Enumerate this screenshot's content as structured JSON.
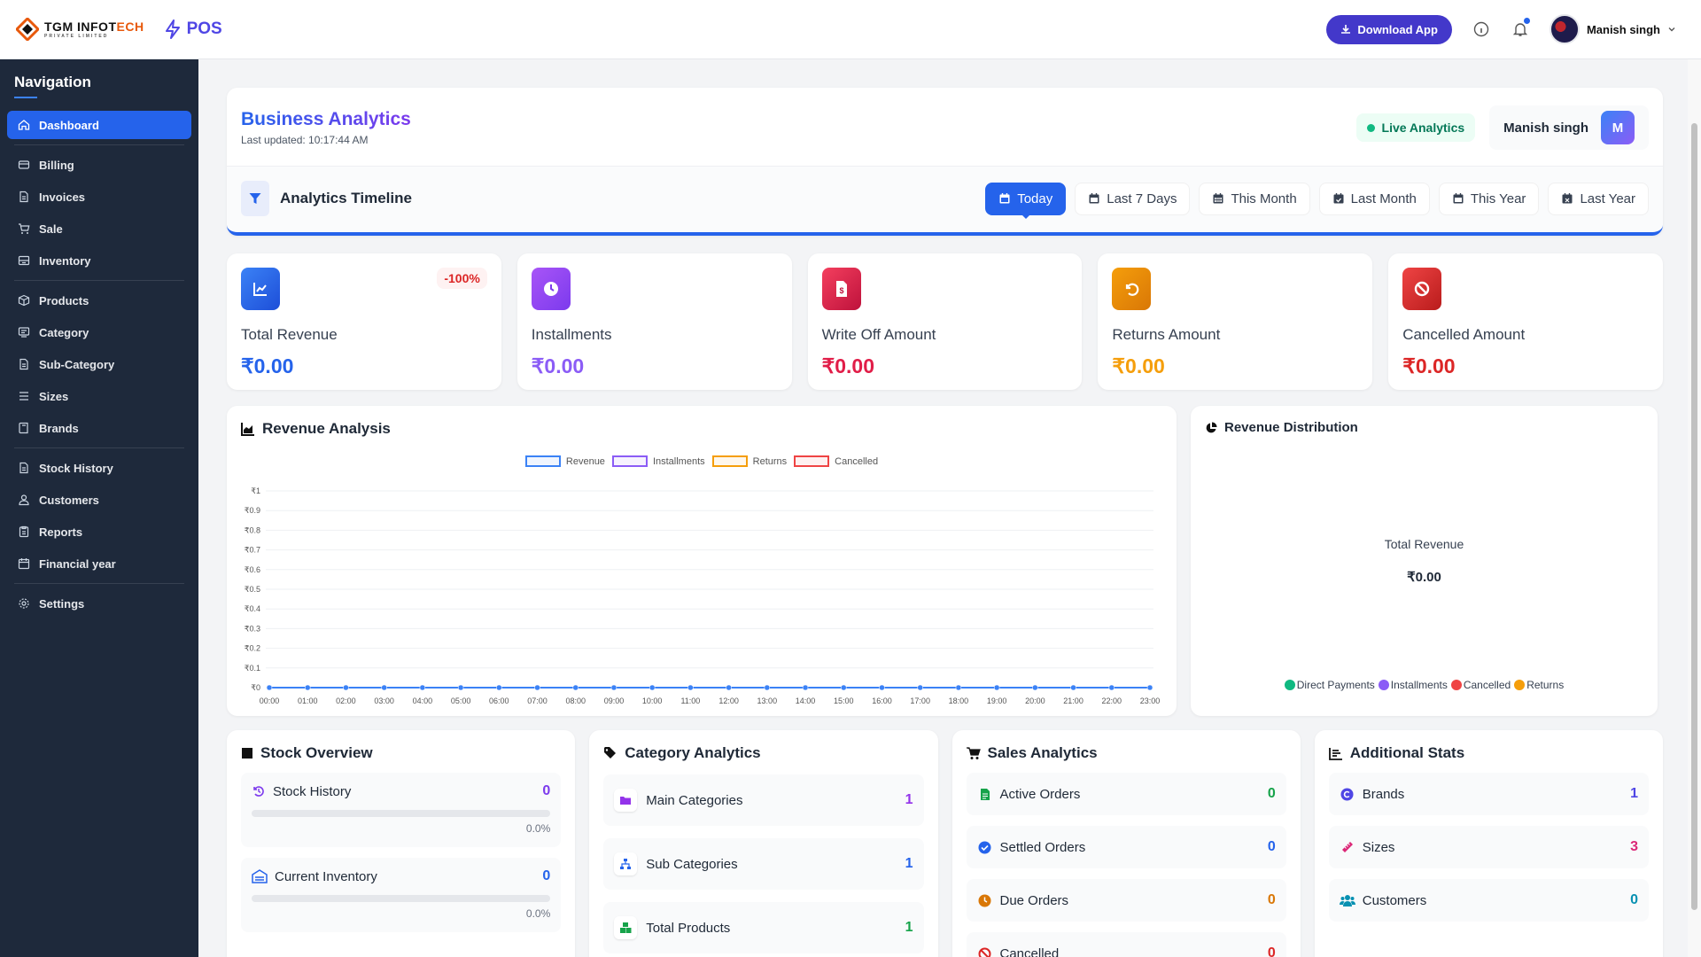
{
  "header": {
    "logo_text_1": "TGM",
    "logo_text_2": "INFOT",
    "logo_text_3": "ECH",
    "logo_sub": "PRIVATE LIMITED",
    "pos_label": "POS",
    "download_label": "Download App",
    "user_name": "Manish singh"
  },
  "sidebar": {
    "title": "Navigation",
    "items": [
      {
        "label": "Dashboard",
        "icon": "home-icon"
      },
      {
        "label": "Billing",
        "icon": "billing-icon"
      },
      {
        "label": "Invoices",
        "icon": "invoice-icon"
      },
      {
        "label": "Sale",
        "icon": "cart-icon"
      },
      {
        "label": "Inventory",
        "icon": "inventory-icon"
      },
      {
        "label": "Products",
        "icon": "box-icon"
      },
      {
        "label": "Category",
        "icon": "category-icon"
      },
      {
        "label": "Sub-Category",
        "icon": "document-icon"
      },
      {
        "label": "Sizes",
        "icon": "list-icon"
      },
      {
        "label": "Brands",
        "icon": "book-icon"
      },
      {
        "label": "Stock History",
        "icon": "document-icon"
      },
      {
        "label": "Customers",
        "icon": "users-icon"
      },
      {
        "label": "Reports",
        "icon": "report-icon"
      },
      {
        "label": "Financial year",
        "icon": "calendar-icon"
      },
      {
        "label": "Settings",
        "icon": "gear-icon"
      }
    ]
  },
  "analytics": {
    "title": "Business Analytics",
    "last_updated": "Last updated: 10:17:44 AM",
    "live_label": "Live Analytics",
    "user_name": "Manish singh",
    "user_initial": "M",
    "timeline_title": "Analytics Timeline",
    "tabs": [
      "Today",
      "Last 7 Days",
      "This Month",
      "Last Month",
      "This Year",
      "Last Year"
    ],
    "active_tab": "Today"
  },
  "stats": [
    {
      "label": "Total Revenue",
      "value": "₹0.00",
      "badge": "-100%",
      "color": "#2563eb"
    },
    {
      "label": "Installments",
      "value": "₹0.00",
      "color": "#8b5cf6"
    },
    {
      "label": "Write Off Amount",
      "value": "₹0.00",
      "color": "#e11d48"
    },
    {
      "label": "Returns Amount",
      "value": "₹0.00",
      "color": "#f59e0b"
    },
    {
      "label": "Cancelled Amount",
      "value": "₹0.00",
      "color": "#dc2626"
    }
  ],
  "revenue_chart": {
    "title": "Revenue Analysis",
    "legend": [
      "Revenue",
      "Installments",
      "Returns",
      "Cancelled"
    ],
    "legend_colors": [
      "#3b82f6",
      "#8b5cf6",
      "#f59e0b",
      "#ef4444"
    ]
  },
  "distribution": {
    "title": "Revenue Distribution",
    "center_label": "Total Revenue",
    "center_value": "₹0.00",
    "legend": [
      "Direct Payments",
      "Installments",
      "Cancelled",
      "Returns"
    ],
    "legend_colors": [
      "#10b981",
      "#8b5cf6",
      "#ef4444",
      "#f59e0b"
    ]
  },
  "stock_overview": {
    "title": "Stock Overview",
    "rows": [
      {
        "label": "Stock History",
        "value": "0",
        "pct": "0.0%",
        "color": "#7c3aed"
      },
      {
        "label": "Current Inventory",
        "value": "0",
        "pct": "0.0%",
        "color": "#2563eb"
      }
    ]
  },
  "category_analytics": {
    "title": "Category Analytics",
    "rows": [
      {
        "label": "Main Categories",
        "value": "1",
        "color": "#9333ea"
      },
      {
        "label": "Sub Categories",
        "value": "1",
        "color": "#2563eb"
      },
      {
        "label": "Total Products",
        "value": "1",
        "color": "#16a34a"
      }
    ]
  },
  "sales_analytics": {
    "title": "Sales Analytics",
    "rows": [
      {
        "label": "Active Orders",
        "value": "0",
        "color": "#16a34a"
      },
      {
        "label": "Settled Orders",
        "value": "0",
        "color": "#2563eb"
      },
      {
        "label": "Due Orders",
        "value": "0",
        "color": "#d97706"
      },
      {
        "label": "Cancelled",
        "value": "0",
        "color": "#dc2626"
      }
    ]
  },
  "additional_stats": {
    "title": "Additional Stats",
    "rows": [
      {
        "label": "Brands",
        "value": "1",
        "color": "#4f46e5"
      },
      {
        "label": "Sizes",
        "value": "3",
        "color": "#db2777"
      },
      {
        "label": "Customers",
        "value": "0",
        "color": "#0891b2"
      }
    ]
  },
  "chart_data": {
    "type": "line",
    "title": "Revenue Analysis",
    "x": [
      "00:00",
      "01:00",
      "02:00",
      "03:00",
      "04:00",
      "05:00",
      "06:00",
      "07:00",
      "08:00",
      "09:00",
      "10:00",
      "11:00",
      "12:00",
      "13:00",
      "14:00",
      "15:00",
      "16:00",
      "17:00",
      "18:00",
      "19:00",
      "20:00",
      "21:00",
      "22:00",
      "23:00"
    ],
    "series": [
      {
        "name": "Revenue",
        "values": [
          0,
          0,
          0,
          0,
          0,
          0,
          0,
          0,
          0,
          0,
          0,
          0,
          0,
          0,
          0,
          0,
          0,
          0,
          0,
          0,
          0,
          0,
          0,
          0
        ]
      },
      {
        "name": "Installments",
        "values": [
          0,
          0,
          0,
          0,
          0,
          0,
          0,
          0,
          0,
          0,
          0,
          0,
          0,
          0,
          0,
          0,
          0,
          0,
          0,
          0,
          0,
          0,
          0,
          0
        ]
      },
      {
        "name": "Returns",
        "values": [
          0,
          0,
          0,
          0,
          0,
          0,
          0,
          0,
          0,
          0,
          0,
          0,
          0,
          0,
          0,
          0,
          0,
          0,
          0,
          0,
          0,
          0,
          0,
          0
        ]
      },
      {
        "name": "Cancelled",
        "values": [
          0,
          0,
          0,
          0,
          0,
          0,
          0,
          0,
          0,
          0,
          0,
          0,
          0,
          0,
          0,
          0,
          0,
          0,
          0,
          0,
          0,
          0,
          0,
          0
        ]
      }
    ],
    "yticks": [
      "₹0",
      "₹0.1",
      "₹0.2",
      "₹0.3",
      "₹0.4",
      "₹0.5",
      "₹0.6",
      "₹0.7",
      "₹0.8",
      "₹0.9",
      "₹1"
    ],
    "ylim": [
      0,
      1
    ],
    "grid": true,
    "legend_position": "top"
  }
}
